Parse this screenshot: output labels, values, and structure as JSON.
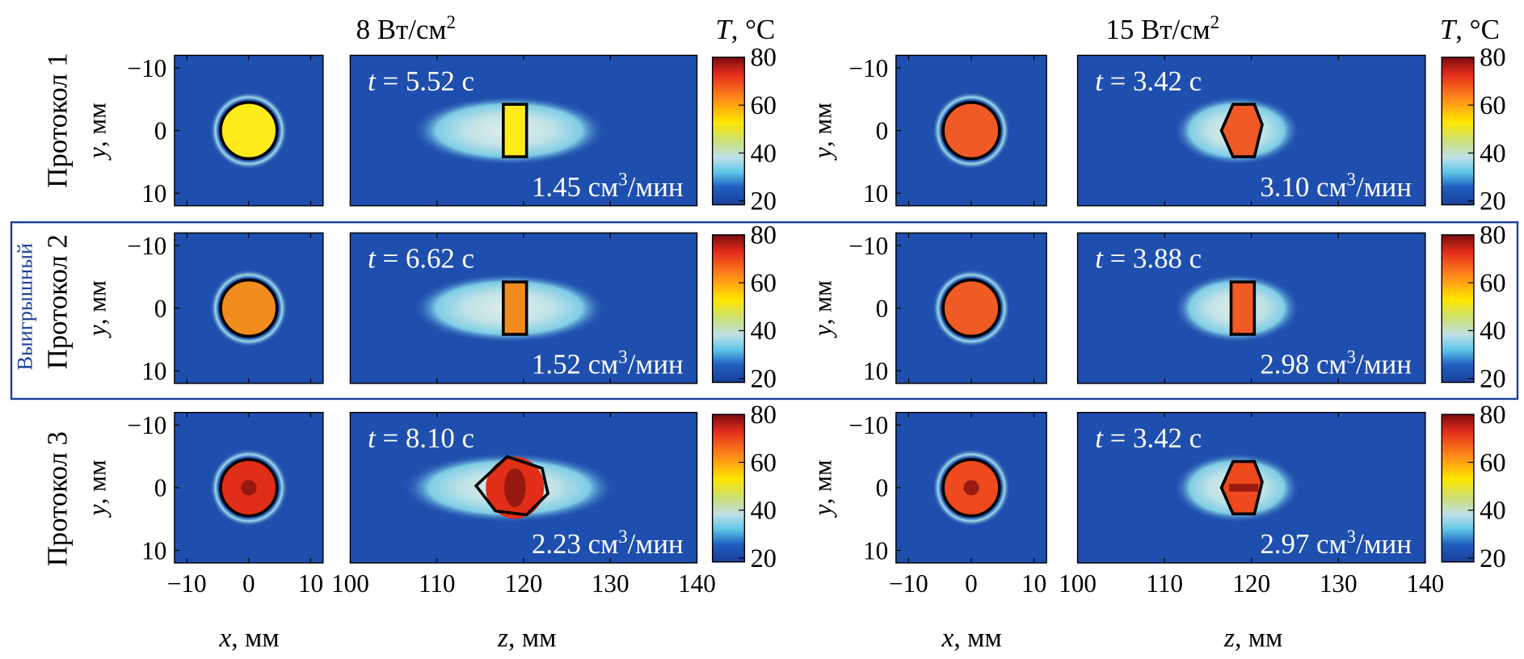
{
  "columns": [
    {
      "power": "8 Вт/см",
      "power_sup": "2",
      "cb_prefix": "T",
      "cb_suffix": ", °C"
    },
    {
      "power": "15 Вт/см",
      "power_sup": "2",
      "cb_prefix": "T",
      "cb_suffix": ", °C"
    }
  ],
  "rows": [
    {
      "label": "Протокол 1",
      "highlight": false
    },
    {
      "label": "Протокол 2",
      "highlight": true,
      "highlight_label": "Выигрышный"
    },
    {
      "label": "Протокол 3",
      "highlight": false
    }
  ],
  "axes": {
    "cross_ylabel_var": "y",
    "cross_ylabel_unit": ", мм",
    "cross_xlabel_var": "x",
    "cross_xlabel_unit": ", мм",
    "long_xlabel_var": "z",
    "long_xlabel_unit": ", мм",
    "cross_yticks": [
      "−10",
      "0",
      "10"
    ],
    "cross_xticks": [
      "−10",
      "0",
      "10"
    ],
    "long_xticks": [
      "100",
      "110",
      "120",
      "130",
      "140"
    ],
    "colorbar_ticks": [
      "20",
      "40",
      "60",
      "80"
    ],
    "time_prefix": "t",
    "volume_unit": " см",
    "volume_sup": "3",
    "volume_suffix": "/мин"
  },
  "chart_data": {
    "type": "heatmap",
    "colormap": [
      "#1b3f9a",
      "#1f5fc0",
      "#5cc6e8",
      "#bfe0e8",
      "#cde070",
      "#ffe600",
      "#ff8a1a",
      "#e52f1c",
      "#7a0a10"
    ],
    "colorbar_range": [
      20,
      80
    ],
    "x_range_mm": [
      -12,
      12
    ],
    "y_range_mm": [
      -12,
      12
    ],
    "z_range_mm": [
      100,
      140
    ],
    "panels": [
      {
        "row": 1,
        "power": "8 Вт/см²",
        "time": "5.52 с",
        "volume": "1.45",
        "peak_temp_c": 72,
        "peak_color": "#ffeb1a",
        "lesion": "rect"
      },
      {
        "row": 1,
        "power": "15 Вт/см²",
        "time": "3.42 с",
        "volume": "3.10",
        "peak_temp_c": 70,
        "peak_color": "#f05a26",
        "lesion": "diamond"
      },
      {
        "row": 2,
        "power": "8 Вт/см²",
        "time": "6.62 с",
        "volume": "1.52",
        "peak_temp_c": 66,
        "peak_color": "#f08c1e",
        "lesion": "rect"
      },
      {
        "row": 2,
        "power": "15 Вт/см²",
        "time": "3.88 с",
        "volume": "2.98",
        "peak_temp_c": 70,
        "peak_color": "#f05a24",
        "lesion": "rect"
      },
      {
        "row": 3,
        "power": "8 Вт/см²",
        "time": "8.10 с",
        "volume": "2.23",
        "peak_temp_c": 80,
        "peak_color": "#e02e18",
        "lesion": "ellipse"
      },
      {
        "row": 3,
        "power": "15 Вт/см²",
        "time": "3.42 с",
        "volume": "2.97",
        "peak_temp_c": 76,
        "peak_color": "#ee4a1e",
        "lesion": "diamond"
      }
    ]
  }
}
